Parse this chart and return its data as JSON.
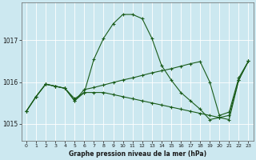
{
  "title": "Graphe pression niveau de la mer (hPa)",
  "bg_color": "#cce8f0",
  "grid_color": "#ffffff",
  "line_color": "#1a5c1a",
  "marker_color": "#1a5c1a",
  "xlim": [
    -0.5,
    23.5
  ],
  "ylim": [
    1014.6,
    1017.9
  ],
  "yticks": [
    1015,
    1016,
    1017
  ],
  "xticks": [
    0,
    1,
    2,
    3,
    4,
    5,
    6,
    7,
    8,
    9,
    10,
    11,
    12,
    13,
    14,
    15,
    16,
    17,
    18,
    19,
    20,
    21,
    22,
    23
  ],
  "series": [
    {
      "x": [
        0,
        1,
        2,
        3,
        4,
        5,
        6,
        7,
        8,
        9,
        10,
        11,
        12,
        13,
        14,
        15,
        16,
        17,
        18,
        19,
        20,
        21,
        22,
        23
      ],
      "y": [
        1015.3,
        1015.65,
        1015.95,
        1015.9,
        1015.85,
        1015.6,
        1015.75,
        1016.55,
        1017.05,
        1017.4,
        1017.62,
        1017.62,
        1017.52,
        1017.05,
        1016.4,
        1016.05,
        1015.75,
        1015.55,
        1015.35,
        1015.1,
        1015.15,
        1015.2,
        1016.05,
        1016.5
      ]
    },
    {
      "x": [
        0,
        1,
        2,
        3,
        4,
        5,
        6,
        7,
        8,
        9,
        10,
        11,
        12,
        13,
        14,
        15,
        16,
        17,
        18,
        19,
        20,
        21,
        22,
        23
      ],
      "y": [
        1015.3,
        1015.65,
        1015.95,
        1015.9,
        1015.85,
        1015.55,
        1015.75,
        1015.75,
        1015.75,
        1015.7,
        1015.65,
        1015.6,
        1015.55,
        1015.5,
        1015.45,
        1015.4,
        1015.35,
        1015.3,
        1015.25,
        1015.2,
        1015.15,
        1015.1,
        1016.05,
        1016.5
      ]
    },
    {
      "x": [
        0,
        1,
        2,
        3,
        4,
        5,
        6,
        7,
        8,
        9,
        10,
        11,
        12,
        13,
        14,
        15,
        16,
        17,
        18,
        19,
        20,
        21,
        22,
        23
      ],
      "y": [
        1015.3,
        1015.65,
        1015.95,
        1015.9,
        1015.85,
        1015.55,
        1015.82,
        1015.87,
        1015.93,
        1015.99,
        1016.05,
        1016.1,
        1016.16,
        1016.22,
        1016.27,
        1016.32,
        1016.38,
        1016.44,
        1016.49,
        1016.0,
        1015.2,
        1015.28,
        1016.1,
        1016.5
      ]
    }
  ]
}
